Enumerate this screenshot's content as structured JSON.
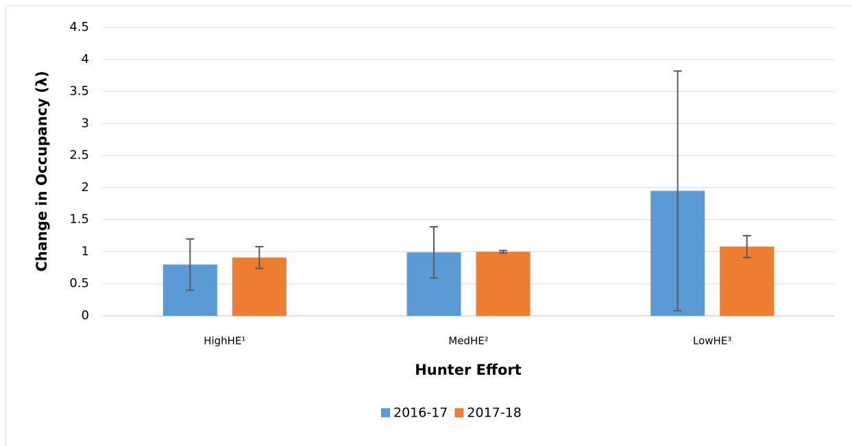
{
  "chart_data": {
    "type": "bar",
    "categories": [
      "HighHE¹",
      "MedHE²",
      "LowHE³"
    ],
    "series": [
      {
        "name": "2016-17",
        "color": "#5b9bd5",
        "values": [
          0.8,
          0.99,
          1.95
        ],
        "errors": [
          0.4,
          0.4,
          1.87
        ]
      },
      {
        "name": "2017-18",
        "color": "#ed7d31",
        "values": [
          0.91,
          1.0,
          1.08
        ],
        "errors": [
          0.17,
          0.02,
          0.17
        ]
      }
    ],
    "x_label": "Hunter Effort",
    "y_label": "Change in Occupancy (λ)",
    "ylim": [
      0,
      4.5
    ],
    "yticks": [
      0,
      0.5,
      1,
      1.5,
      2,
      2.5,
      3,
      3.5,
      4,
      4.5
    ],
    "grid": true,
    "legend": "bottom"
  }
}
